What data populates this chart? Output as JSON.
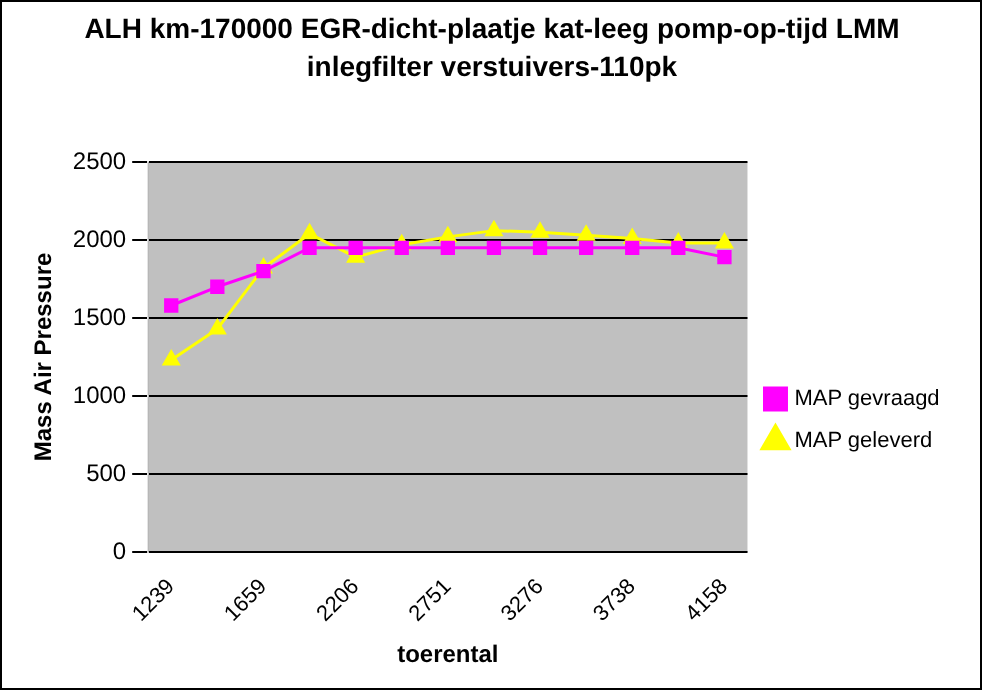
{
  "chart_data": {
    "type": "line",
    "title": "ALH km-170000 EGR-dicht-plaatje kat-leeg pomp-op-tijd LMM inlegfilter verstuivers-110pk",
    "xlabel": "toerental",
    "ylabel": "Mass Air Pressure",
    "categories": [
      "1239",
      null,
      "1659",
      null,
      "2206",
      null,
      "2751",
      null,
      "3276",
      null,
      "3738",
      null,
      "4158"
    ],
    "series": [
      {
        "name": "MAP gevraagd",
        "color": "#ff00ff",
        "marker": "square",
        "values": [
          1580,
          1700,
          1800,
          1950,
          1950,
          1950,
          1950,
          1950,
          1950,
          1950,
          1950,
          1950,
          1890
        ]
      },
      {
        "name": "MAP geleverd",
        "color": "#ffff00",
        "marker": "triangle",
        "values": [
          1230,
          1430,
          1820,
          2040,
          1890,
          1970,
          2020,
          2060,
          2050,
          2030,
          2010,
          1980,
          1980
        ]
      }
    ],
    "ylim": [
      0,
      2500
    ],
    "yticks": [
      0,
      500,
      1000,
      1500,
      2000,
      2500
    ],
    "grid": "y",
    "legend": "right"
  }
}
